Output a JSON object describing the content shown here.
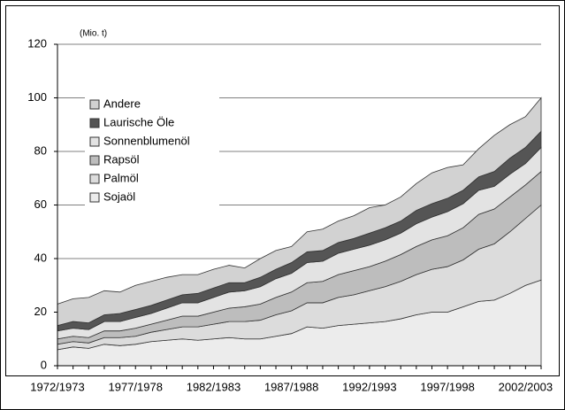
{
  "chart_data": {
    "type": "stacked-area",
    "unit_label": "(Mio. t)",
    "categories": [
      "1972/1973",
      null,
      null,
      null,
      null,
      "1977/1978",
      null,
      null,
      null,
      null,
      "1982/1983",
      null,
      null,
      null,
      null,
      "1987/1988",
      null,
      null,
      null,
      null,
      "1992/1993",
      null,
      null,
      null,
      null,
      "1997/1998",
      null,
      null,
      null,
      null,
      "2002/2003",
      null
    ],
    "series": [
      {
        "name": "Sojaöl",
        "color": "#ececec",
        "values": [
          6,
          7,
          6.5,
          8,
          7.5,
          8,
          9,
          9.5,
          10,
          9.5,
          10,
          10.5,
          10,
          10,
          11,
          12,
          14.5,
          14,
          15,
          15.5,
          16,
          16.5,
          17.5,
          19,
          20,
          20,
          22,
          24,
          24.5,
          27,
          30,
          32
        ]
      },
      {
        "name": "Palmöl",
        "color": "#dcdcdc",
        "values": [
          2,
          2,
          2,
          2.5,
          3,
          3,
          3.5,
          4,
          4.5,
          5,
          5.5,
          6,
          6.5,
          7,
          8,
          8.5,
          9,
          9.5,
          10.5,
          11,
          12,
          13,
          14,
          15,
          16,
          17,
          17.5,
          19.5,
          21,
          23,
          25,
          28
        ]
      },
      {
        "name": "Rapsöl",
        "color": "#bdbdbd",
        "values": [
          2,
          2,
          2,
          2.5,
          2.5,
          3,
          3,
          3.5,
          4,
          4,
          4.5,
          5,
          5.5,
          6,
          6.5,
          7,
          7.5,
          8,
          8.5,
          9,
          9,
          9.5,
          10,
          10.5,
          11,
          11.5,
          12,
          13,
          13,
          13,
          12.5,
          12.5
        ]
      },
      {
        "name": "Sonnenblumenöl",
        "color": "#e3e3e3",
        "values": [
          3,
          3,
          3,
          3.5,
          3.5,
          4,
          4,
          4.5,
          5,
          5,
          5.5,
          6,
          6,
          6.5,
          7,
          7,
          7.5,
          7.5,
          8,
          8,
          8,
          8,
          8,
          8.5,
          8.5,
          9,
          9,
          9,
          8.5,
          8.5,
          8,
          9
        ]
      },
      {
        "name": "Laurische Öle",
        "color": "#555555",
        "values": [
          2,
          2.5,
          2.5,
          2.5,
          3,
          3,
          3,
          3,
          3,
          3.5,
          3.5,
          3.5,
          3,
          3.5,
          3.5,
          4,
          4,
          4,
          4,
          4,
          4.5,
          4.5,
          4.5,
          5,
          5,
          5,
          5,
          5,
          5.5,
          6,
          6,
          6
        ]
      },
      {
        "name": "Andere",
        "color": "#d2d2d2",
        "values": [
          8,
          8.5,
          9.5,
          9,
          8,
          9,
          9,
          8.5,
          7.5,
          7,
          7,
          6.5,
          5.5,
          7,
          7,
          6,
          7.5,
          8,
          8,
          8.5,
          9.5,
          8.5,
          9,
          10,
          11.5,
          11.5,
          9.5,
          10.5,
          13.5,
          12.5,
          11.5,
          12.5
        ]
      }
    ],
    "ylim": [
      0,
      120
    ],
    "yticks": [
      0,
      20,
      40,
      60,
      80,
      100,
      120
    ],
    "grid": true,
    "legend": "upper-left"
  }
}
